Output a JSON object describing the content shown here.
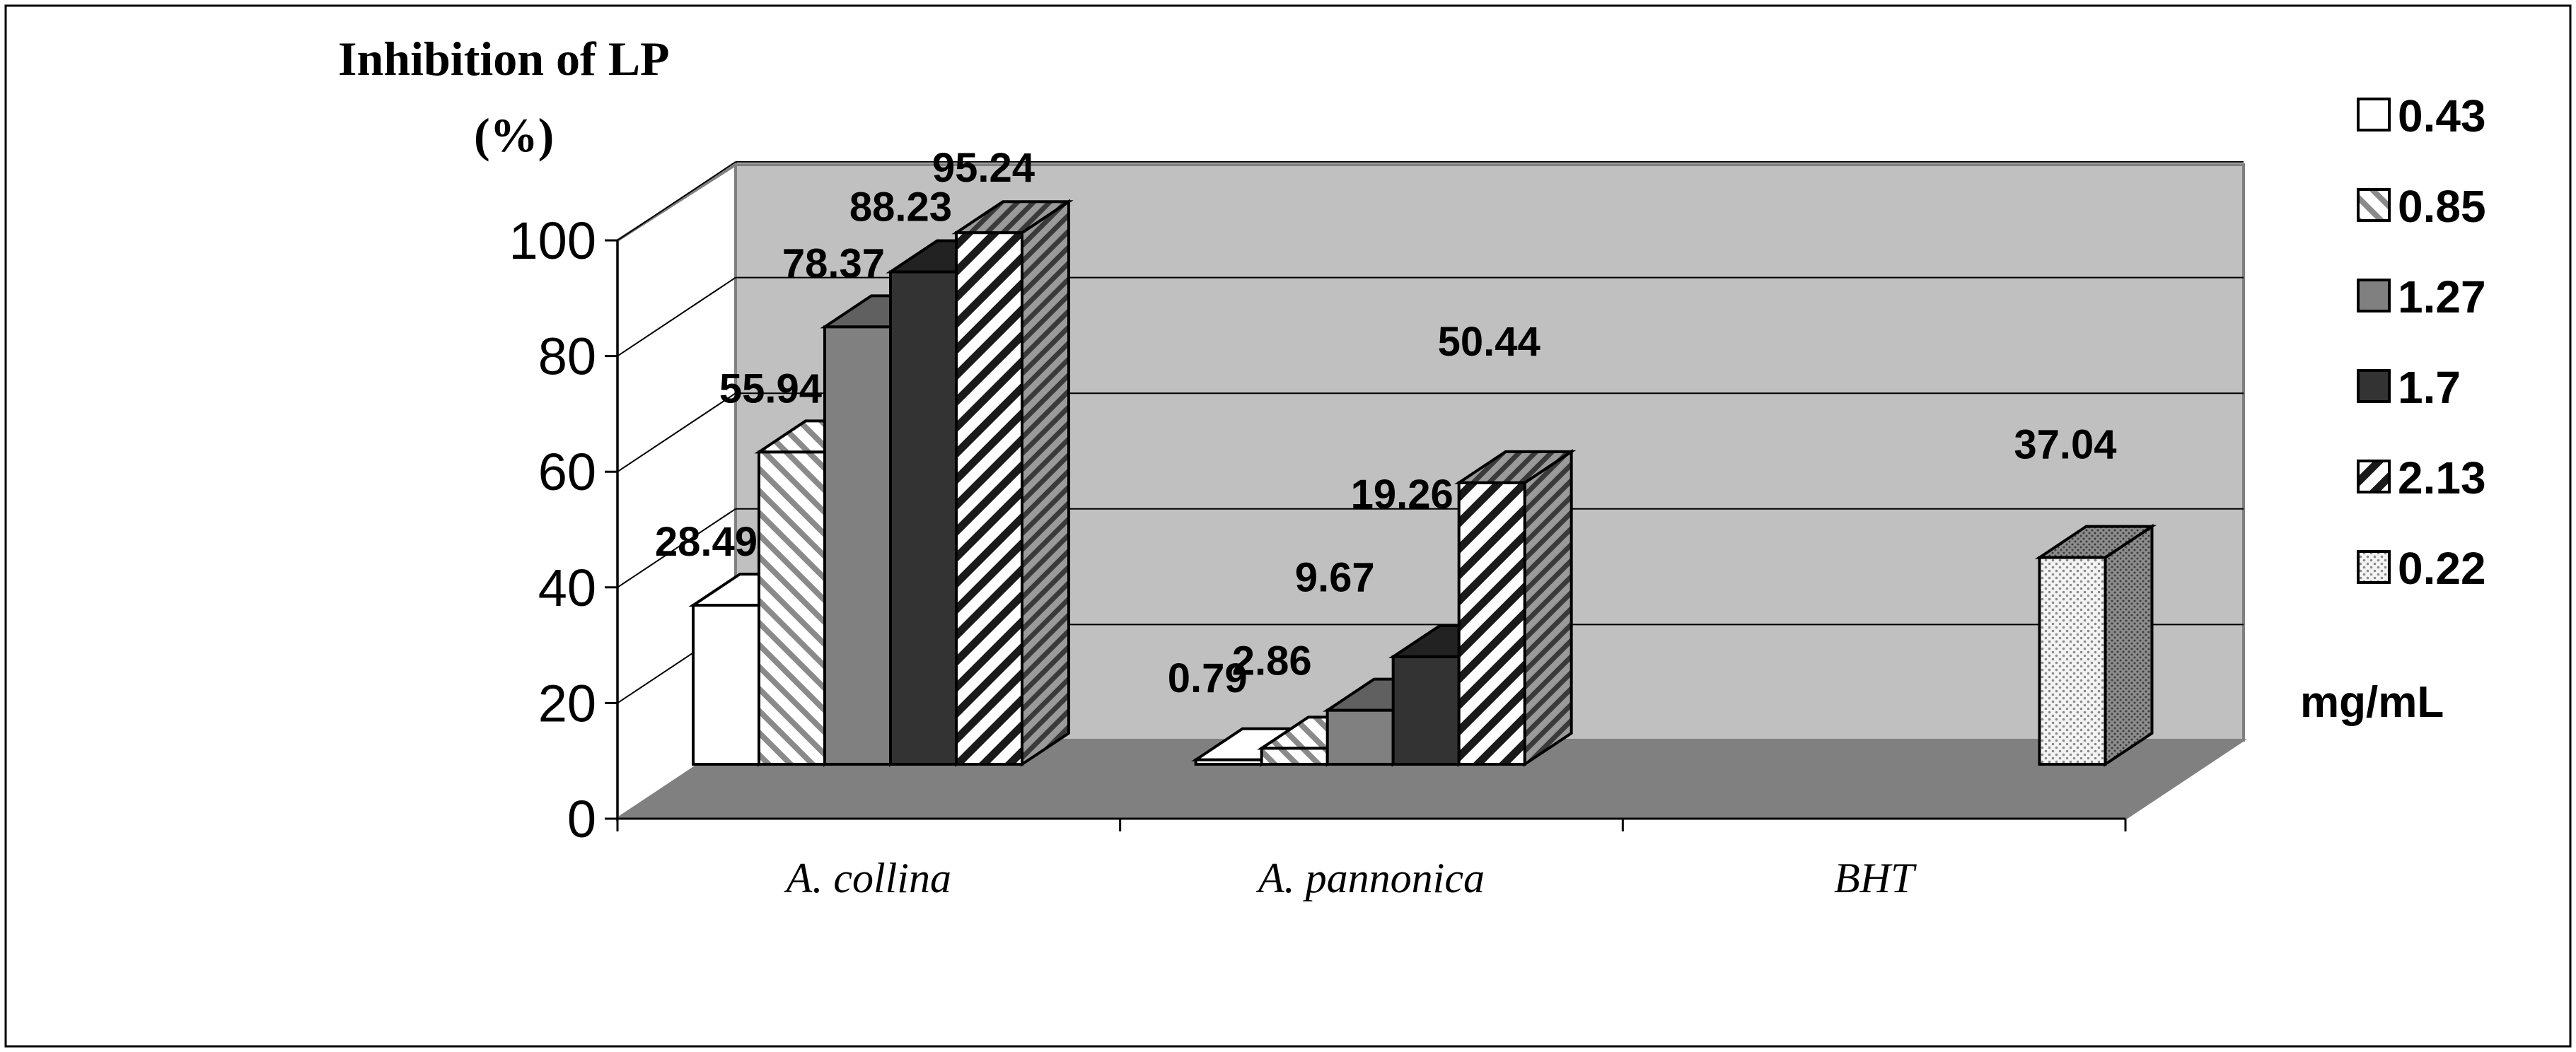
{
  "chart_data": {
    "type": "bar",
    "ylabel_line1": "Inhibition of LP",
    "ylabel_line2": "(%)",
    "yticks": [
      "0",
      "20",
      "40",
      "60",
      "80",
      "100"
    ],
    "ylim": [
      0,
      100
    ],
    "categories": [
      "A. collina",
      "A. pannonica",
      "BHT"
    ],
    "legend_title": "mg/mL",
    "legend_placement": "right",
    "series": [
      {
        "name": "0.43",
        "values": [
          28.49,
          0.79,
          null
        ]
      },
      {
        "name": "0.85",
        "values": [
          55.94,
          2.86,
          null
        ]
      },
      {
        "name": "1.27",
        "values": [
          78.37,
          9.67,
          null
        ]
      },
      {
        "name": "1.7",
        "values": [
          88.23,
          19.26,
          null
        ]
      },
      {
        "name": "2.13",
        "values": [
          95.24,
          50.44,
          null
        ]
      },
      {
        "name": "0.22",
        "values": [
          null,
          null,
          37.04
        ]
      }
    ],
    "data_labels": [
      {
        "text": "28.49",
        "cat": 0,
        "series": 0
      },
      {
        "text": "55.94",
        "cat": 0,
        "series": 1
      },
      {
        "text": "78.37",
        "cat": 0,
        "series": 2
      },
      {
        "text": "88.23",
        "cat": 0,
        "series": 3
      },
      {
        "text": "95.24",
        "cat": 0,
        "series": 4
      },
      {
        "text": "0.79",
        "cat": 1,
        "series": 0
      },
      {
        "text": "2.86",
        "cat": 1,
        "series": 1
      },
      {
        "text": "9.67",
        "cat": 1,
        "series": 2
      },
      {
        "text": "19.26",
        "cat": 1,
        "series": 3
      },
      {
        "text": "50.44",
        "cat": 1,
        "series": 4
      },
      {
        "text": "37.04",
        "cat": 2,
        "series": 5
      }
    ],
    "colors": {
      "wall": "#c0c0c0",
      "floor": "#808080",
      "side_wall": "#ffffff",
      "gridline": "#000000"
    },
    "series_styles": [
      "white",
      "diagonal-light",
      "gray",
      "dark",
      "diagonal-bold",
      "dotted"
    ],
    "grid": true
  }
}
